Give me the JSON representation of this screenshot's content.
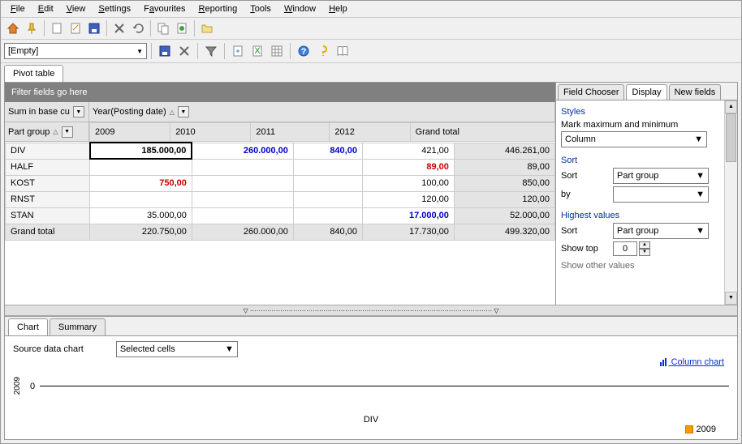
{
  "menu": [
    "File",
    "Edit",
    "View",
    "Settings",
    "Favourites",
    "Reporting",
    "Tools",
    "Window",
    "Help"
  ],
  "combo_empty": "[Empty]",
  "pivot_tab": "Pivot table",
  "filter_placeholder": "Filter fields go here",
  "measure_field": "Sum in base cu",
  "col_field": "Year(Posting date)",
  "row_field": "Part group",
  "col_headers": [
    "2009",
    "2010",
    "2011",
    "2012",
    "Grand total"
  ],
  "rows": [
    {
      "label": "DIV",
      "cells": [
        {
          "v": "185.000,00",
          "cls": "bold sel"
        },
        {
          "v": "260.000,00",
          "cls": "blue"
        },
        {
          "v": "840,00",
          "cls": "blue"
        },
        {
          "v": "421,00"
        },
        {
          "v": "446.261,00",
          "cls": "gt-col"
        }
      ]
    },
    {
      "label": "HALF",
      "cells": [
        {
          "v": ""
        },
        {
          "v": ""
        },
        {
          "v": ""
        },
        {
          "v": "89,00",
          "cls": "red"
        },
        {
          "v": "89,00",
          "cls": "gt-col"
        }
      ]
    },
    {
      "label": "KOST",
      "cells": [
        {
          "v": "750,00",
          "cls": "red"
        },
        {
          "v": ""
        },
        {
          "v": ""
        },
        {
          "v": "100,00"
        },
        {
          "v": "850,00",
          "cls": "gt-col"
        }
      ]
    },
    {
      "label": "RNST",
      "cells": [
        {
          "v": ""
        },
        {
          "v": ""
        },
        {
          "v": ""
        },
        {
          "v": "120,00"
        },
        {
          "v": "120,00",
          "cls": "gt-col"
        }
      ]
    },
    {
      "label": "STAN",
      "cells": [
        {
          "v": "35.000,00"
        },
        {
          "v": ""
        },
        {
          "v": ""
        },
        {
          "v": "17.000,00",
          "cls": "blue"
        },
        {
          "v": "52.000,00",
          "cls": "gt-col"
        }
      ]
    }
  ],
  "grand_total_row": {
    "label": "Grand total",
    "cells": [
      "220.750,00",
      "260.000,00",
      "840,00",
      "17.730,00",
      "499.320,00"
    ]
  },
  "side_tabs": [
    "Field Chooser",
    "Display",
    "New fields"
  ],
  "side_active_tab": 1,
  "styles_title": "Styles",
  "mark_label": "Mark maximum and minimum",
  "mark_value": "Column",
  "sort_title": "Sort",
  "sort_label": "Sort",
  "sort_value": "Part group",
  "by_label": "by",
  "by_value": "",
  "highest_title": "Highest values",
  "h_sort_label": "Sort",
  "h_sort_value": "Part group",
  "showtop_label": "Show top",
  "showtop_value": "0",
  "other_label": "Show other values",
  "bottom_tabs": [
    "Chart",
    "Summary"
  ],
  "source_label": "Source data chart",
  "source_value": "Selected cells",
  "chart_ylabel": "2009",
  "chart_zero": "0",
  "chart_xlabel": "DIV",
  "chart_link": "Column chart",
  "chart_legend": "2009"
}
